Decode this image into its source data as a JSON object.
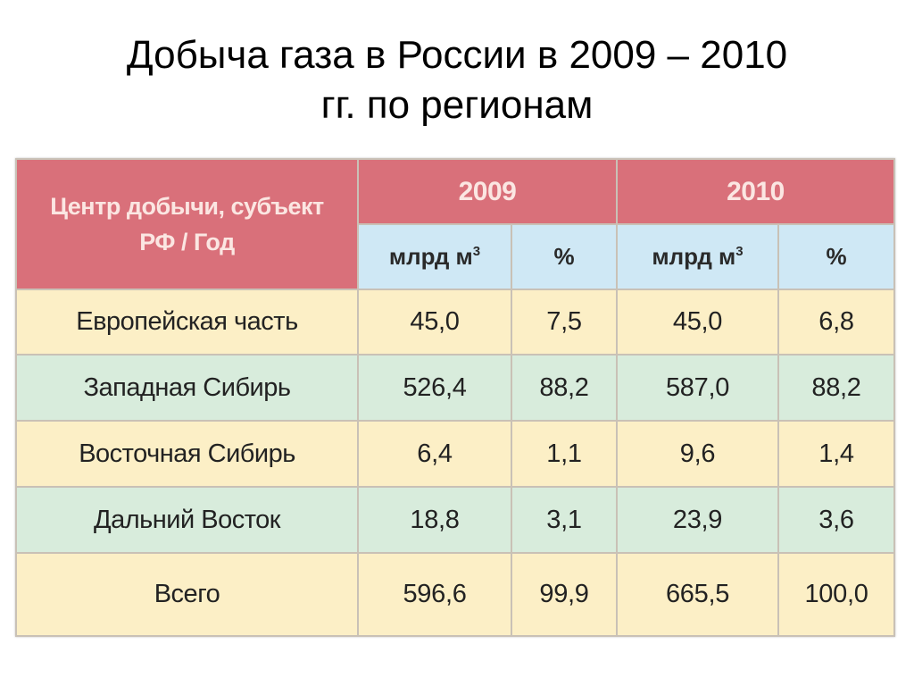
{
  "title": {
    "line1": "Добыча газа в России в 2009 – 2010",
    "line2": "гг. по регионам"
  },
  "table": {
    "corner_header": {
      "line1": "Центр добычи, субъект",
      "line2": "РФ / Год"
    },
    "years": [
      "2009",
      "2010"
    ],
    "subheaders": {
      "volume": "млрд м",
      "volume_sup": "3",
      "percent": "%"
    },
    "rows": [
      {
        "region": "Европейская часть",
        "v2009": "45,0",
        "p2009": "7,5",
        "v2010": "45,0",
        "p2010": "6,8"
      },
      {
        "region": "Западная Сибирь",
        "v2009": "526,4",
        "p2009": "88,2",
        "v2010": "587,0",
        "p2010": "88,2"
      },
      {
        "region": "Восточная Сибирь",
        "v2009": "6,4",
        "p2009": "1,1",
        "v2010": "9,6",
        "p2010": "1,4"
      },
      {
        "region": "Дальний Восток",
        "v2009": "18,8",
        "p2009": "3,1",
        "v2010": "23,9",
        "p2010": "3,6"
      },
      {
        "region": "Всего",
        "v2009": "596,6",
        "p2009": "99,9",
        "v2010": "665,5",
        "p2010": "100,0"
      }
    ],
    "colors": {
      "header_red": "#d9707a",
      "header_blue": "#cfe8f5",
      "row_yellow": "#fcefc6",
      "row_green": "#d8ecdc"
    }
  }
}
